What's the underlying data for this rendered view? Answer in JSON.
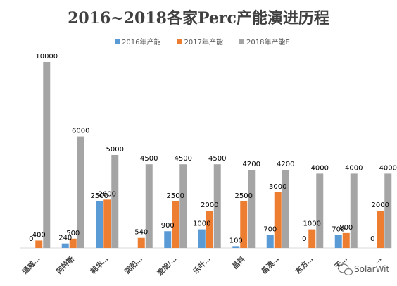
{
  "chart_data": {
    "type": "bar",
    "title": "2016~2018各家Perc产能演进历程",
    "xlabel": "",
    "ylabel": "",
    "ylim": [
      0,
      10500
    ],
    "grid": false,
    "legend_position": "top-right",
    "categories": [
      "通威…",
      "阿特斯",
      "韩华…",
      "润阳…",
      "爱旭/…",
      "乐叶…",
      "晶科",
      "晶澳…",
      "东方…",
      "天…",
      "…"
    ],
    "series": [
      {
        "name": "2016年产能",
        "color": "#5B9BD5",
        "values": [
          0,
          240,
          2500,
          null,
          900,
          1000,
          100,
          700,
          0,
          700,
          0
        ]
      },
      {
        "name": "2017年产能",
        "color": "#ED7D31",
        "values": [
          400,
          500,
          2600,
          540,
          2500,
          2000,
          2500,
          3000,
          1000,
          800,
          2000
        ]
      },
      {
        "name": "2018年产能E",
        "color": "#A5A5A5",
        "values": [
          10000,
          6000,
          5000,
          4500,
          4500,
          4500,
          4200,
          4200,
          4000,
          4000,
          4000
        ]
      }
    ]
  },
  "watermark": {
    "icon": "wechat-icon",
    "text": "SolarWit"
  }
}
